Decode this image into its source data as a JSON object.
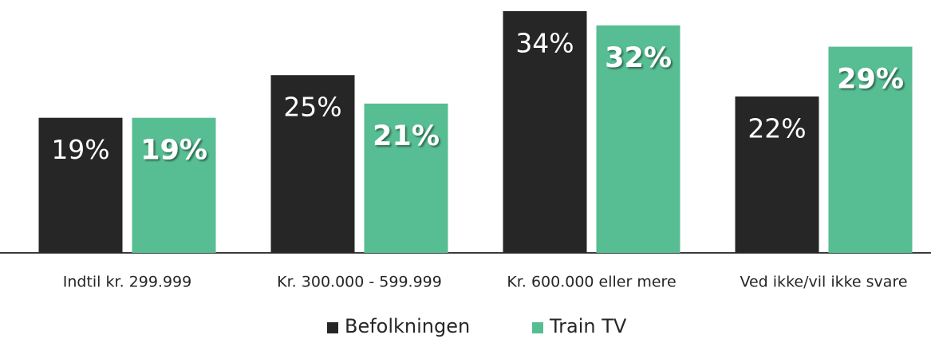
{
  "chart_data": {
    "type": "bar",
    "categories": [
      "Indtil kr. 299.999",
      "Kr. 300.000 - 599.999",
      "Kr. 600.000 eller mere",
      "Ved ikke/vil ikke svare"
    ],
    "series": [
      {
        "name": "Befolkningen",
        "color": "#262626",
        "values": [
          19,
          25,
          34,
          22
        ],
        "value_labels": [
          "19%",
          "25%",
          "34%",
          "22%"
        ]
      },
      {
        "name": "Train TV",
        "color": "#57bd92",
        "values": [
          19,
          21,
          32,
          29
        ],
        "value_labels": [
          "19%",
          "21%",
          "32%",
          "29%"
        ]
      }
    ]
  }
}
